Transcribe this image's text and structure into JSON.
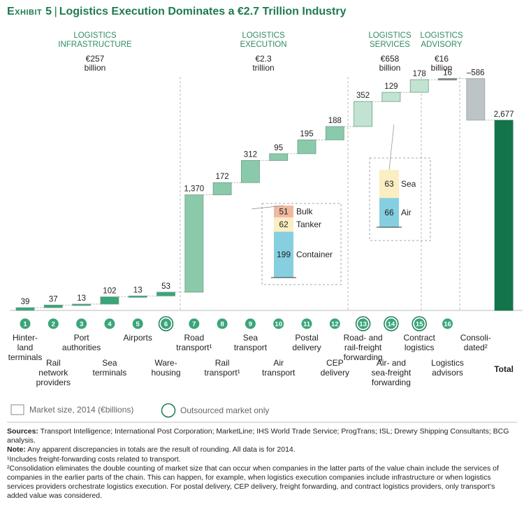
{
  "header": {
    "exhibit": "Exhibit 5",
    "title": "Logistics Execution Dominates a €2.7 Trillion Industry"
  },
  "sections": [
    {
      "name_lines": [
        "LOGISTICS",
        "INFRASTRUCTURE"
      ],
      "value_lines": [
        "€257",
        "billion"
      ]
    },
    {
      "name_lines": [
        "LOGISTICS",
        "EXECUTION"
      ],
      "value_lines": [
        "€2.3",
        "trillion"
      ]
    },
    {
      "name_lines": [
        "LOGISTICS",
        "SERVICES"
      ],
      "value_lines": [
        "€658",
        "billion"
      ]
    },
    {
      "name_lines": [
        "LOGISTICS",
        "ADVISORY"
      ],
      "value_lines": [
        "€16",
        "billion"
      ]
    }
  ],
  "chart_data": {
    "type": "waterfall",
    "title": "Logistics Execution Dominates a €2.7 Trillion Industry",
    "unit": "€billions",
    "ylim": [
      0,
      2750
    ],
    "series": [
      {
        "num": "1",
        "label_lines": [
          "Hinter-",
          "land",
          "terminals"
        ],
        "value": 39,
        "value_label": "39",
        "segment": "infrastructure",
        "outsourced": false
      },
      {
        "num": "2",
        "label_lines": [
          "Rail",
          "network",
          "providers"
        ],
        "value": 37,
        "value_label": "37",
        "segment": "infrastructure",
        "outsourced": false
      },
      {
        "num": "3",
        "label_lines": [
          "Port",
          "authorities"
        ],
        "value": 13,
        "value_label": "13",
        "segment": "infrastructure",
        "outsourced": false
      },
      {
        "num": "4",
        "label_lines": [
          "Sea",
          "terminals"
        ],
        "value": 102,
        "value_label": "102",
        "segment": "infrastructure",
        "outsourced": false
      },
      {
        "num": "5",
        "label_lines": [
          "Airports"
        ],
        "value": 13,
        "value_label": "13",
        "segment": "infrastructure",
        "outsourced": false
      },
      {
        "num": "6",
        "label_lines": [
          "Ware-",
          "housing"
        ],
        "value": 53,
        "value_label": "53",
        "segment": "infrastructure",
        "outsourced": true
      },
      {
        "num": "7",
        "label_lines": [
          "Road",
          "transport¹"
        ],
        "value": 1370,
        "value_label": "1,370",
        "segment": "execution",
        "outsourced": false
      },
      {
        "num": "8",
        "label_lines": [
          "Rail",
          "transport¹"
        ],
        "value": 172,
        "value_label": "172",
        "segment": "execution",
        "outsourced": false
      },
      {
        "num": "9",
        "label_lines": [
          "Sea",
          "transport"
        ],
        "value": 312,
        "value_label": "312",
        "segment": "execution",
        "outsourced": false
      },
      {
        "num": "10",
        "label_lines": [
          "Air",
          "transport"
        ],
        "value": 95,
        "value_label": "95",
        "segment": "execution",
        "outsourced": false
      },
      {
        "num": "11",
        "label_lines": [
          "Postal",
          "delivery"
        ],
        "value": 195,
        "value_label": "195",
        "segment": "execution",
        "outsourced": false
      },
      {
        "num": "12",
        "label_lines": [
          "CEP",
          "delivery"
        ],
        "value": 188,
        "value_label": "188",
        "segment": "execution",
        "outsourced": false
      },
      {
        "num": "13",
        "label_lines": [
          "Road- and",
          "rail-freight",
          "forwarding"
        ],
        "value": 352,
        "value_label": "352",
        "segment": "services",
        "outsourced": true
      },
      {
        "num": "14",
        "label_lines": [
          "Air- and",
          "sea-freight",
          "forwarding"
        ],
        "value": 129,
        "value_label": "129",
        "segment": "services",
        "outsourced": true
      },
      {
        "num": "15",
        "label_lines": [
          "Contract",
          "logistics"
        ],
        "value": 178,
        "value_label": "178",
        "segment": "services",
        "outsourced": true
      },
      {
        "num": "16",
        "label_lines": [
          "Logistics",
          "advisors"
        ],
        "value": 16,
        "value_label": "16",
        "segment": "advisory",
        "outsourced": false
      },
      {
        "num": "",
        "label_lines": [
          "Consoli-",
          "dated²"
        ],
        "value": -586,
        "value_label": "–586",
        "segment": "consolidation",
        "outsourced": false
      },
      {
        "num": "",
        "label_lines": [
          "Total"
        ],
        "value": 2677,
        "value_label": "2,677",
        "segment": "total",
        "outsourced": false
      }
    ],
    "breakdowns": [
      {
        "parent": "Sea transport",
        "segments": [
          {
            "name": "Container",
            "value": 199,
            "color": "#86cfe0"
          },
          {
            "name": "Tanker",
            "value": 62,
            "color": "#fbeec3"
          },
          {
            "name": "Bulk",
            "value": 51,
            "color": "#f0b8a1"
          }
        ]
      },
      {
        "parent": "Air- and sea-freight forwarding",
        "segments": [
          {
            "name": "Air",
            "value": 66,
            "color": "#86cfe0"
          },
          {
            "name": "Sea",
            "value": 63,
            "color": "#fbeec3"
          }
        ]
      }
    ],
    "legend": {
      "market_size": "Market size, 2014 (€billions)",
      "outsourced": "Outsourced market only"
    }
  },
  "colors": {
    "brand": "#1e7a50",
    "circle": "#3aa57a",
    "infrastructure": "#3aa57a",
    "execution": "#8bc9ab",
    "services": "#c3e3d2",
    "advisory": "#7f8c91",
    "consolidation": "#bcc4c8",
    "total": "#13744a",
    "bar_border": "#6a9e84"
  },
  "footnotes": {
    "sources_label": "Sources:",
    "sources_text": "Transport Intelligence; International Post Corporation; MarketLine; IHS World Trade Service; ProgTrans; ISL; Drewry Shipping Consultants; BCG analysis.",
    "note_label": "Note:",
    "note_text": "Any apparent discrepancies in totals are the result of rounding. All data is for 2014.",
    "fn1": "¹Includes freight-forwarding costs related to transport.",
    "fn2": "²Consolidation eliminates the double counting of market size that can occur when companies in the latter parts of the value chain include the services of companies in the earlier parts of the chain. This can happen, for example, when logistics execution companies include infrastructure or when logistics services providers orchestrate logistics execution. For postal delivery, CEP delivery, freight forwarding, and contract logistics providers, only transport’s added value was considered."
  }
}
